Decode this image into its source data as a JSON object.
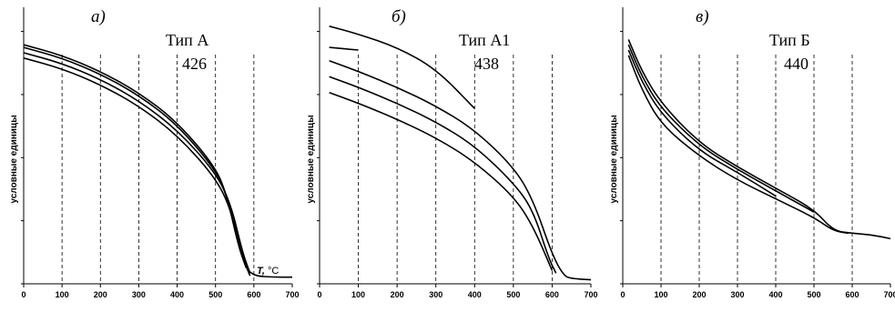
{
  "chart_data": [
    {
      "type": "line",
      "panel_letter": "а)",
      "title": "Тип А",
      "subtitle": "426",
      "ylabel": "условные единицы",
      "xlabel_symbol": "T,",
      "xlabel_unit": " °C",
      "xlim": [
        0,
        700
      ],
      "ylim": [
        0,
        100
      ],
      "xticks": [
        0,
        100,
        200,
        300,
        400,
        500,
        600,
        700
      ],
      "dashed_lines_x": [
        100,
        200,
        300,
        400,
        500,
        600
      ],
      "series": [
        {
          "x": [
            0,
            100,
            200,
            300,
            400,
            500,
            530,
            560,
            580,
            600,
            650,
            700
          ],
          "y": [
            90,
            86,
            80,
            72,
            61,
            44,
            33,
            15,
            6,
            3,
            2.5,
            2.5
          ]
        },
        {
          "x": [
            0,
            100,
            200,
            300,
            400,
            500,
            530,
            560,
            580
          ],
          "y": [
            89,
            85,
            79,
            71,
            60,
            43,
            33,
            14,
            6
          ]
        },
        {
          "x": [
            0,
            100,
            200,
            300,
            400,
            500,
            540,
            570,
            590
          ],
          "y": [
            87,
            83,
            77,
            69,
            58,
            42,
            30,
            12,
            4
          ]
        },
        {
          "x": [
            0,
            100,
            200,
            300,
            400,
            500,
            540,
            570,
            590
          ],
          "y": [
            85,
            81,
            75,
            67,
            56,
            40,
            28,
            10,
            3
          ]
        }
      ]
    },
    {
      "type": "line",
      "panel_letter": "б)",
      "title": "Тип А1",
      "subtitle": "438",
      "ylabel": "условные единицы",
      "xlim": [
        0,
        700
      ],
      "ylim": [
        0,
        100
      ],
      "xticks": [
        0,
        100,
        200,
        300,
        400,
        500,
        600,
        700
      ],
      "dashed_lines_x": [
        100,
        200,
        300,
        400,
        500,
        600
      ],
      "series": [
        {
          "x": [
            25,
            100,
            200,
            300,
            400
          ],
          "y": [
            97,
            94,
            89,
            81,
            66
          ]
        },
        {
          "x": [
            25,
            100
          ],
          "y": [
            89,
            88
          ]
        },
        {
          "x": [
            25,
            100,
            200,
            300,
            400,
            500,
            550,
            600,
            630,
            650,
            700
          ],
          "y": [
            84,
            80,
            74,
            67,
            58,
            44,
            32,
            11,
            3,
            2,
            1.5
          ]
        },
        {
          "x": [
            25,
            100,
            200,
            300,
            400,
            500,
            550,
            590,
            610
          ],
          "y": [
            78,
            74,
            68,
            61,
            52,
            38,
            28,
            10,
            4
          ]
        },
        {
          "x": [
            25,
            100,
            200,
            300,
            400,
            500,
            550,
            600
          ],
          "y": [
            72,
            68,
            62,
            55,
            46,
            33,
            22,
            5
          ]
        }
      ]
    },
    {
      "type": "line",
      "panel_letter": "в)",
      "title": "Тип Б",
      "subtitle": "440",
      "ylabel": "условные единицы",
      "xlim": [
        0,
        700
      ],
      "ylim": [
        0,
        100
      ],
      "xticks": [
        0,
        100,
        200,
        300,
        400,
        500,
        600,
        700
      ],
      "dashed_lines_x": [
        100,
        200,
        300,
        400,
        500,
        600
      ],
      "series": [
        {
          "x": [
            15,
            50,
            100,
            200,
            300,
            400,
            500,
            550,
            600,
            650,
            700
          ],
          "y": [
            92,
            80,
            68,
            53,
            44,
            36,
            28,
            20,
            19,
            18.5,
            17
          ]
        },
        {
          "x": [
            15,
            50,
            100,
            200,
            300,
            400,
            500
          ],
          "y": [
            90,
            78,
            66,
            52,
            43,
            35,
            27
          ]
        },
        {
          "x": [
            15,
            50,
            100,
            200,
            300,
            400
          ],
          "y": [
            88,
            76,
            64,
            50,
            42,
            33
          ]
        },
        {
          "x": [
            15,
            50,
            100,
            200,
            300,
            400,
            500,
            550,
            590
          ],
          "y": [
            86,
            73,
            60,
            48,
            39,
            32,
            25,
            20,
            19
          ]
        }
      ]
    }
  ]
}
